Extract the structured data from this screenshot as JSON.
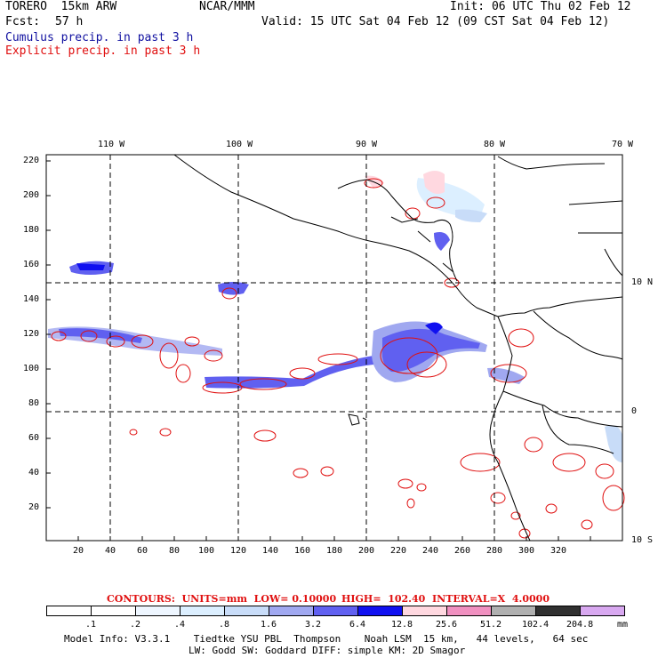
{
  "header": {
    "model": "TORERO  15km ARW",
    "org": "NCAR/MMM",
    "init": "Init: 06 UTC Thu 02 Feb 12",
    "fcst_label": "Fcst:",
    "fcst_value": "57 h",
    "valid": "Valid: 15 UTC Sat 04 Feb 12 (09 CST Sat 04 Feb 12)",
    "legend_cumulus": "Cumulus precip. in past 3 h",
    "legend_explicit": "Explicit precip. in past 3 h"
  },
  "map": {
    "lon_labels": [
      "110 W",
      "100 W",
      "90 W",
      "80 W",
      "70 W"
    ],
    "lat_labels": [
      "10 N",
      "0",
      "10 S"
    ],
    "y_ticks": [
      "220",
      "200",
      "180",
      "160",
      "140",
      "120",
      "100",
      "80",
      "60",
      "40",
      "20"
    ],
    "x_ticks": [
      "20",
      "40",
      "60",
      "80",
      "100",
      "120",
      "140",
      "160",
      "180",
      "200",
      "220",
      "240",
      "260",
      "280",
      "300",
      "320"
    ]
  },
  "contours_info": {
    "contours": "CONTOURS:  UNITS=mm  LOW= 0.10000",
    "high": "HIGH=  102.40",
    "interval": "INTERVAL=X  4.0000"
  },
  "colorbar": {
    "levels": [
      ".1",
      ".2",
      ".4",
      ".8",
      "1.6",
      "3.2",
      "6.4",
      "12.8",
      "25.6",
      "51.2",
      "102.4",
      "204.8"
    ],
    "unit": "mm",
    "colors": [
      "#ffffff",
      "#ffffff",
      "#eef6ff",
      "#dcefff",
      "#c8dcf8",
      "#a0a8f0",
      "#6060f0",
      "#1010f0",
      "#ffd8e0",
      "#f090c0",
      "#b0b0b0",
      "#303030",
      "#d8a8f0"
    ]
  },
  "footer": {
    "line1": "Model Info: V3.3.1    Tiedtke YSU PBL  Thompson    Noah LSM  15 km,   44 levels,   64 sec",
    "line2": "LW: Godd SW: Goddard DIFF: simple KM: 2D Smagor"
  }
}
